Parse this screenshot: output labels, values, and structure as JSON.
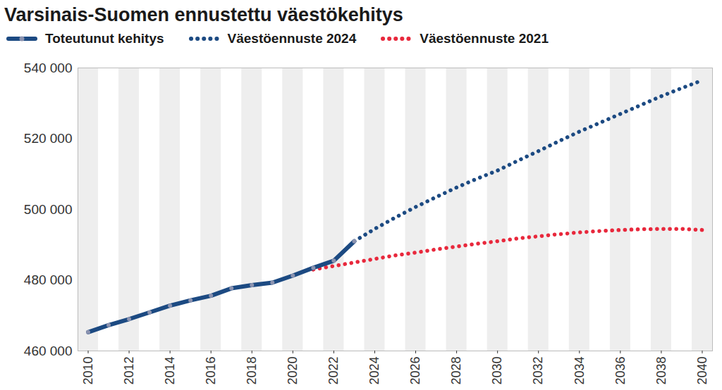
{
  "chart_data": {
    "type": "line",
    "title": "Varsinais-Suomen ennustettu väestökehitys",
    "x": [
      2010,
      2011,
      2012,
      2013,
      2014,
      2015,
      2016,
      2017,
      2018,
      2019,
      2020,
      2021,
      2022,
      2023,
      2024,
      2025,
      2026,
      2027,
      2028,
      2029,
      2030,
      2031,
      2032,
      2033,
      2034,
      2035,
      2036,
      2037,
      2038,
      2039,
      2040
    ],
    "series": [
      {
        "name": "Toteutunut kehitys",
        "color": "#1c4a82",
        "line_style": "solid",
        "marker": "circle",
        "values": [
          465300,
          467300,
          469000,
          470900,
          472800,
          474300,
          475600,
          477700,
          478600,
          479300,
          481300,
          483500,
          485500,
          491000,
          null,
          null,
          null,
          null,
          null,
          null,
          null,
          null,
          null,
          null,
          null,
          null,
          null,
          null,
          null,
          null,
          null
        ]
      },
      {
        "name": "Väestöennuste 2024",
        "color": "#1c4a82",
        "line_style": "dotted",
        "values": [
          null,
          null,
          null,
          null,
          null,
          null,
          null,
          null,
          null,
          null,
          null,
          null,
          null,
          491000,
          494500,
          497700,
          500700,
          503500,
          506200,
          508700,
          511000,
          513800,
          516500,
          519300,
          522000,
          524500,
          527000,
          529500,
          532000,
          534300,
          536500
        ]
      },
      {
        "name": "Väestöennuste 2021",
        "color": "#e8283c",
        "line_style": "dotted",
        "values": [
          null,
          null,
          null,
          null,
          null,
          null,
          null,
          null,
          null,
          null,
          null,
          483000,
          484000,
          485000,
          486000,
          487000,
          487800,
          488700,
          489500,
          490300,
          491000,
          491800,
          492400,
          493000,
          493500,
          493900,
          494200,
          494400,
          494500,
          494500,
          494200
        ]
      }
    ],
    "xlim": [
      2009.5,
      2040.5
    ],
    "xticks": [
      2010,
      2012,
      2014,
      2016,
      2018,
      2020,
      2022,
      2024,
      2026,
      2028,
      2030,
      2032,
      2034,
      2036,
      2038,
      2040
    ],
    "ylim": [
      460000,
      540000
    ],
    "yticks": [
      {
        "value": 460000,
        "label": "460 000"
      },
      {
        "value": 480000,
        "label": "480 000"
      },
      {
        "value": 500000,
        "label": "500 000"
      },
      {
        "value": 520000,
        "label": "520 000"
      },
      {
        "value": 540000,
        "label": "540 000"
      }
    ],
    "grid": false
  }
}
